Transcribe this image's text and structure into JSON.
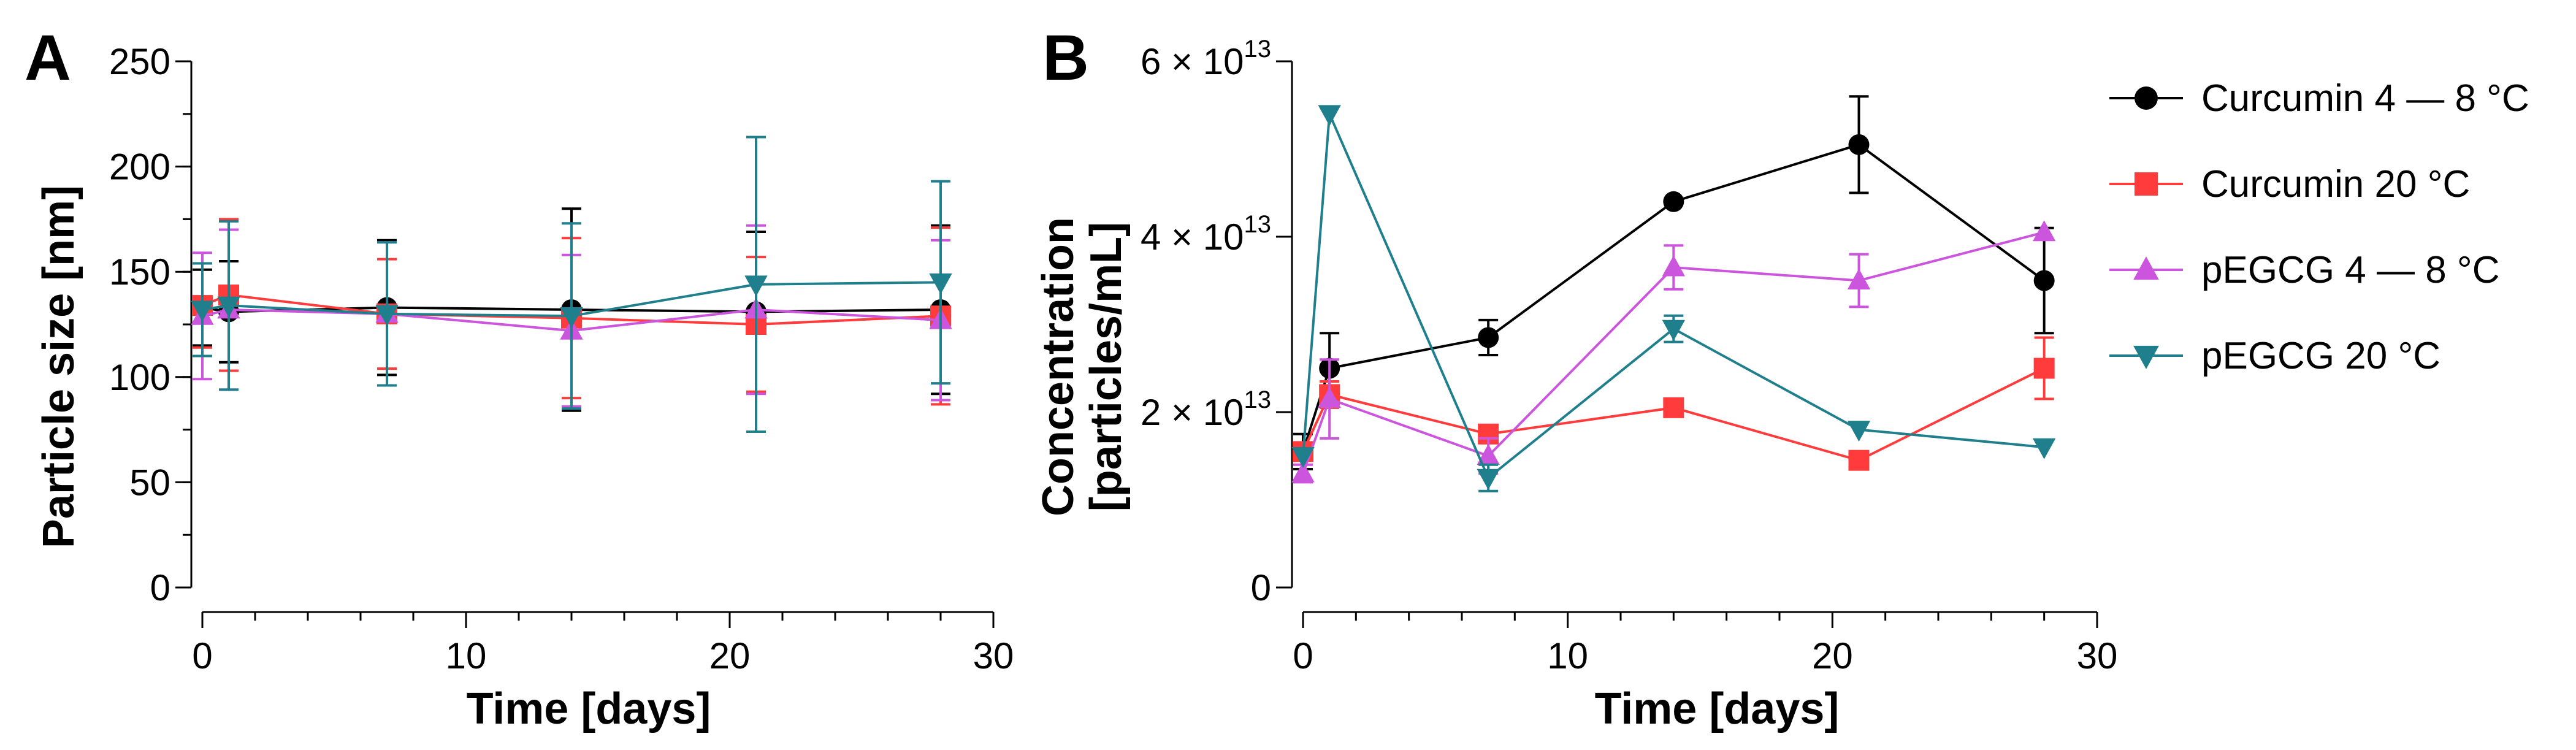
{
  "chart_data": [
    {
      "panel": "A",
      "type": "line",
      "xlabel": "Time [days]",
      "ylabel": "Particle size [nm]",
      "xlim": [
        0,
        30
      ],
      "ylim": [
        0,
        250
      ],
      "xticks": [
        "0",
        "10",
        "20",
        "30"
      ],
      "yticks": [
        "0",
        "50",
        "100",
        "150",
        "200",
        "250"
      ],
      "x": [
        0,
        1,
        7,
        14,
        21,
        28
      ],
      "series": [
        {
          "name": "Curcumin 4 — 8 °C",
          "color": "#000000",
          "marker": "circle",
          "values": [
            133,
            131,
            133,
            132,
            131,
            132
          ],
          "errors": [
            18,
            24,
            32,
            48,
            38,
            40
          ]
        },
        {
          "name": "Curcumin 20 °C",
          "color": "#ff3b3b",
          "marker": "square",
          "values": [
            134,
            139,
            130,
            128,
            125,
            129
          ],
          "errors": [
            20,
            36,
            26,
            38,
            32,
            42
          ]
        },
        {
          "name": "pEGCG 4 — 8 °C",
          "color": "#cc55dd",
          "marker": "triangle-up",
          "values": [
            129,
            132,
            130,
            122,
            132,
            127
          ],
          "errors": [
            30,
            38,
            34,
            36,
            40,
            38
          ]
        },
        {
          "name": "pEGCG 20 °C",
          "color": "#1f7f8c",
          "marker": "triangle-down",
          "values": [
            132,
            134,
            130,
            129,
            144,
            145
          ],
          "errors": [
            22,
            40,
            34,
            44,
            70,
            48
          ]
        }
      ]
    },
    {
      "panel": "B",
      "type": "line",
      "xlabel": "Time [days]",
      "ylabel_line1": "Concentration",
      "ylabel_line2": "[particles/mL]",
      "xlim": [
        0,
        30
      ],
      "ylim": [
        0,
        60000000000000.0
      ],
      "xticks": [
        "0",
        "10",
        "20",
        "30"
      ],
      "yticks": [
        {
          "value": 0,
          "mantissa": "0",
          "exponent": ""
        },
        {
          "value": 20000000000000.0,
          "mantissa": "2 × 10",
          "exponent": "13"
        },
        {
          "value": 40000000000000.0,
          "mantissa": "4 × 10",
          "exponent": "13"
        },
        {
          "value": 60000000000000.0,
          "mantissa": "6 × 10",
          "exponent": "13"
        }
      ],
      "x": [
        0,
        1,
        7,
        14,
        21,
        28
      ],
      "series": [
        {
          "name": "Curcumin 4 — 8 °C",
          "color": "#000000",
          "marker": "circle",
          "values": [
            15500000000000.0,
            25000000000000.0,
            28500000000000.0,
            44000000000000.0,
            50500000000000.0,
            35000000000000.0
          ],
          "errors": [
            2000000000000.0,
            4000000000000.0,
            2000000000000.0,
            0,
            5500000000000.0,
            6000000000000.0
          ]
        },
        {
          "name": "Curcumin 20 °C",
          "color": "#ff3b3b",
          "marker": "square",
          "values": [
            15500000000000.0,
            22000000000000.0,
            17500000000000.0,
            20500000000000.0,
            14500000000000.0,
            25000000000000.0
          ],
          "errors": [
            1000000000000.0,
            1500000000000.0,
            0,
            0,
            0,
            3500000000000.0
          ]
        },
        {
          "name": "pEGCG 4 — 8 °C",
          "color": "#cc55dd",
          "marker": "triangle-up",
          "values": [
            13000000000000.0,
            21500000000000.0,
            15000000000000.0,
            36500000000000.0,
            35000000000000.0,
            40500000000000.0
          ],
          "errors": [
            1000000000000.0,
            4500000000000.0,
            2000000000000.0,
            2500000000000.0,
            3000000000000.0,
            0
          ]
        },
        {
          "name": "pEGCG 20 °C",
          "color": "#1f7f8c",
          "marker": "triangle-down",
          "values": [
            15000000000000.0,
            54000000000000.0,
            12500000000000.0,
            29500000000000.0,
            18000000000000.0,
            16000000000000.0
          ],
          "errors": [
            0,
            0,
            1500000000000.0,
            1500000000000.0,
            0,
            0
          ]
        }
      ]
    }
  ],
  "legend": {
    "placement": "right",
    "entries": [
      {
        "label": "Curcumin 4 — 8 °C",
        "color": "#000000",
        "marker": "circle"
      },
      {
        "label": "Curcumin 20 °C",
        "color": "#ff3b3b",
        "marker": "square"
      },
      {
        "label": "pEGCG 4 — 8 °C",
        "color": "#cc55dd",
        "marker": "triangle-up"
      },
      {
        "label": "pEGCG 20 °C",
        "color": "#1f7f8c",
        "marker": "triangle-down"
      }
    ]
  }
}
